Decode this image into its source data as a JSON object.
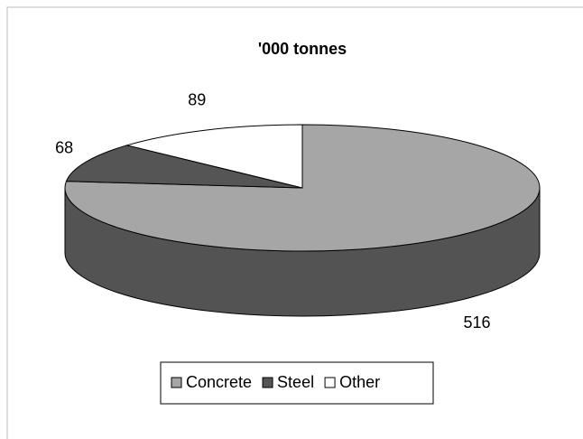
{
  "chart_data": {
    "type": "pie3d",
    "title": "'000 tonnes",
    "categories": [
      "Concrete",
      "Steel",
      "Other"
    ],
    "values": [
      516,
      68,
      89
    ],
    "colors": [
      "#a6a6a6",
      "#555555",
      "#ffffff"
    ],
    "start_angle": 0,
    "direction": "clockwise",
    "legend": "bottom"
  }
}
